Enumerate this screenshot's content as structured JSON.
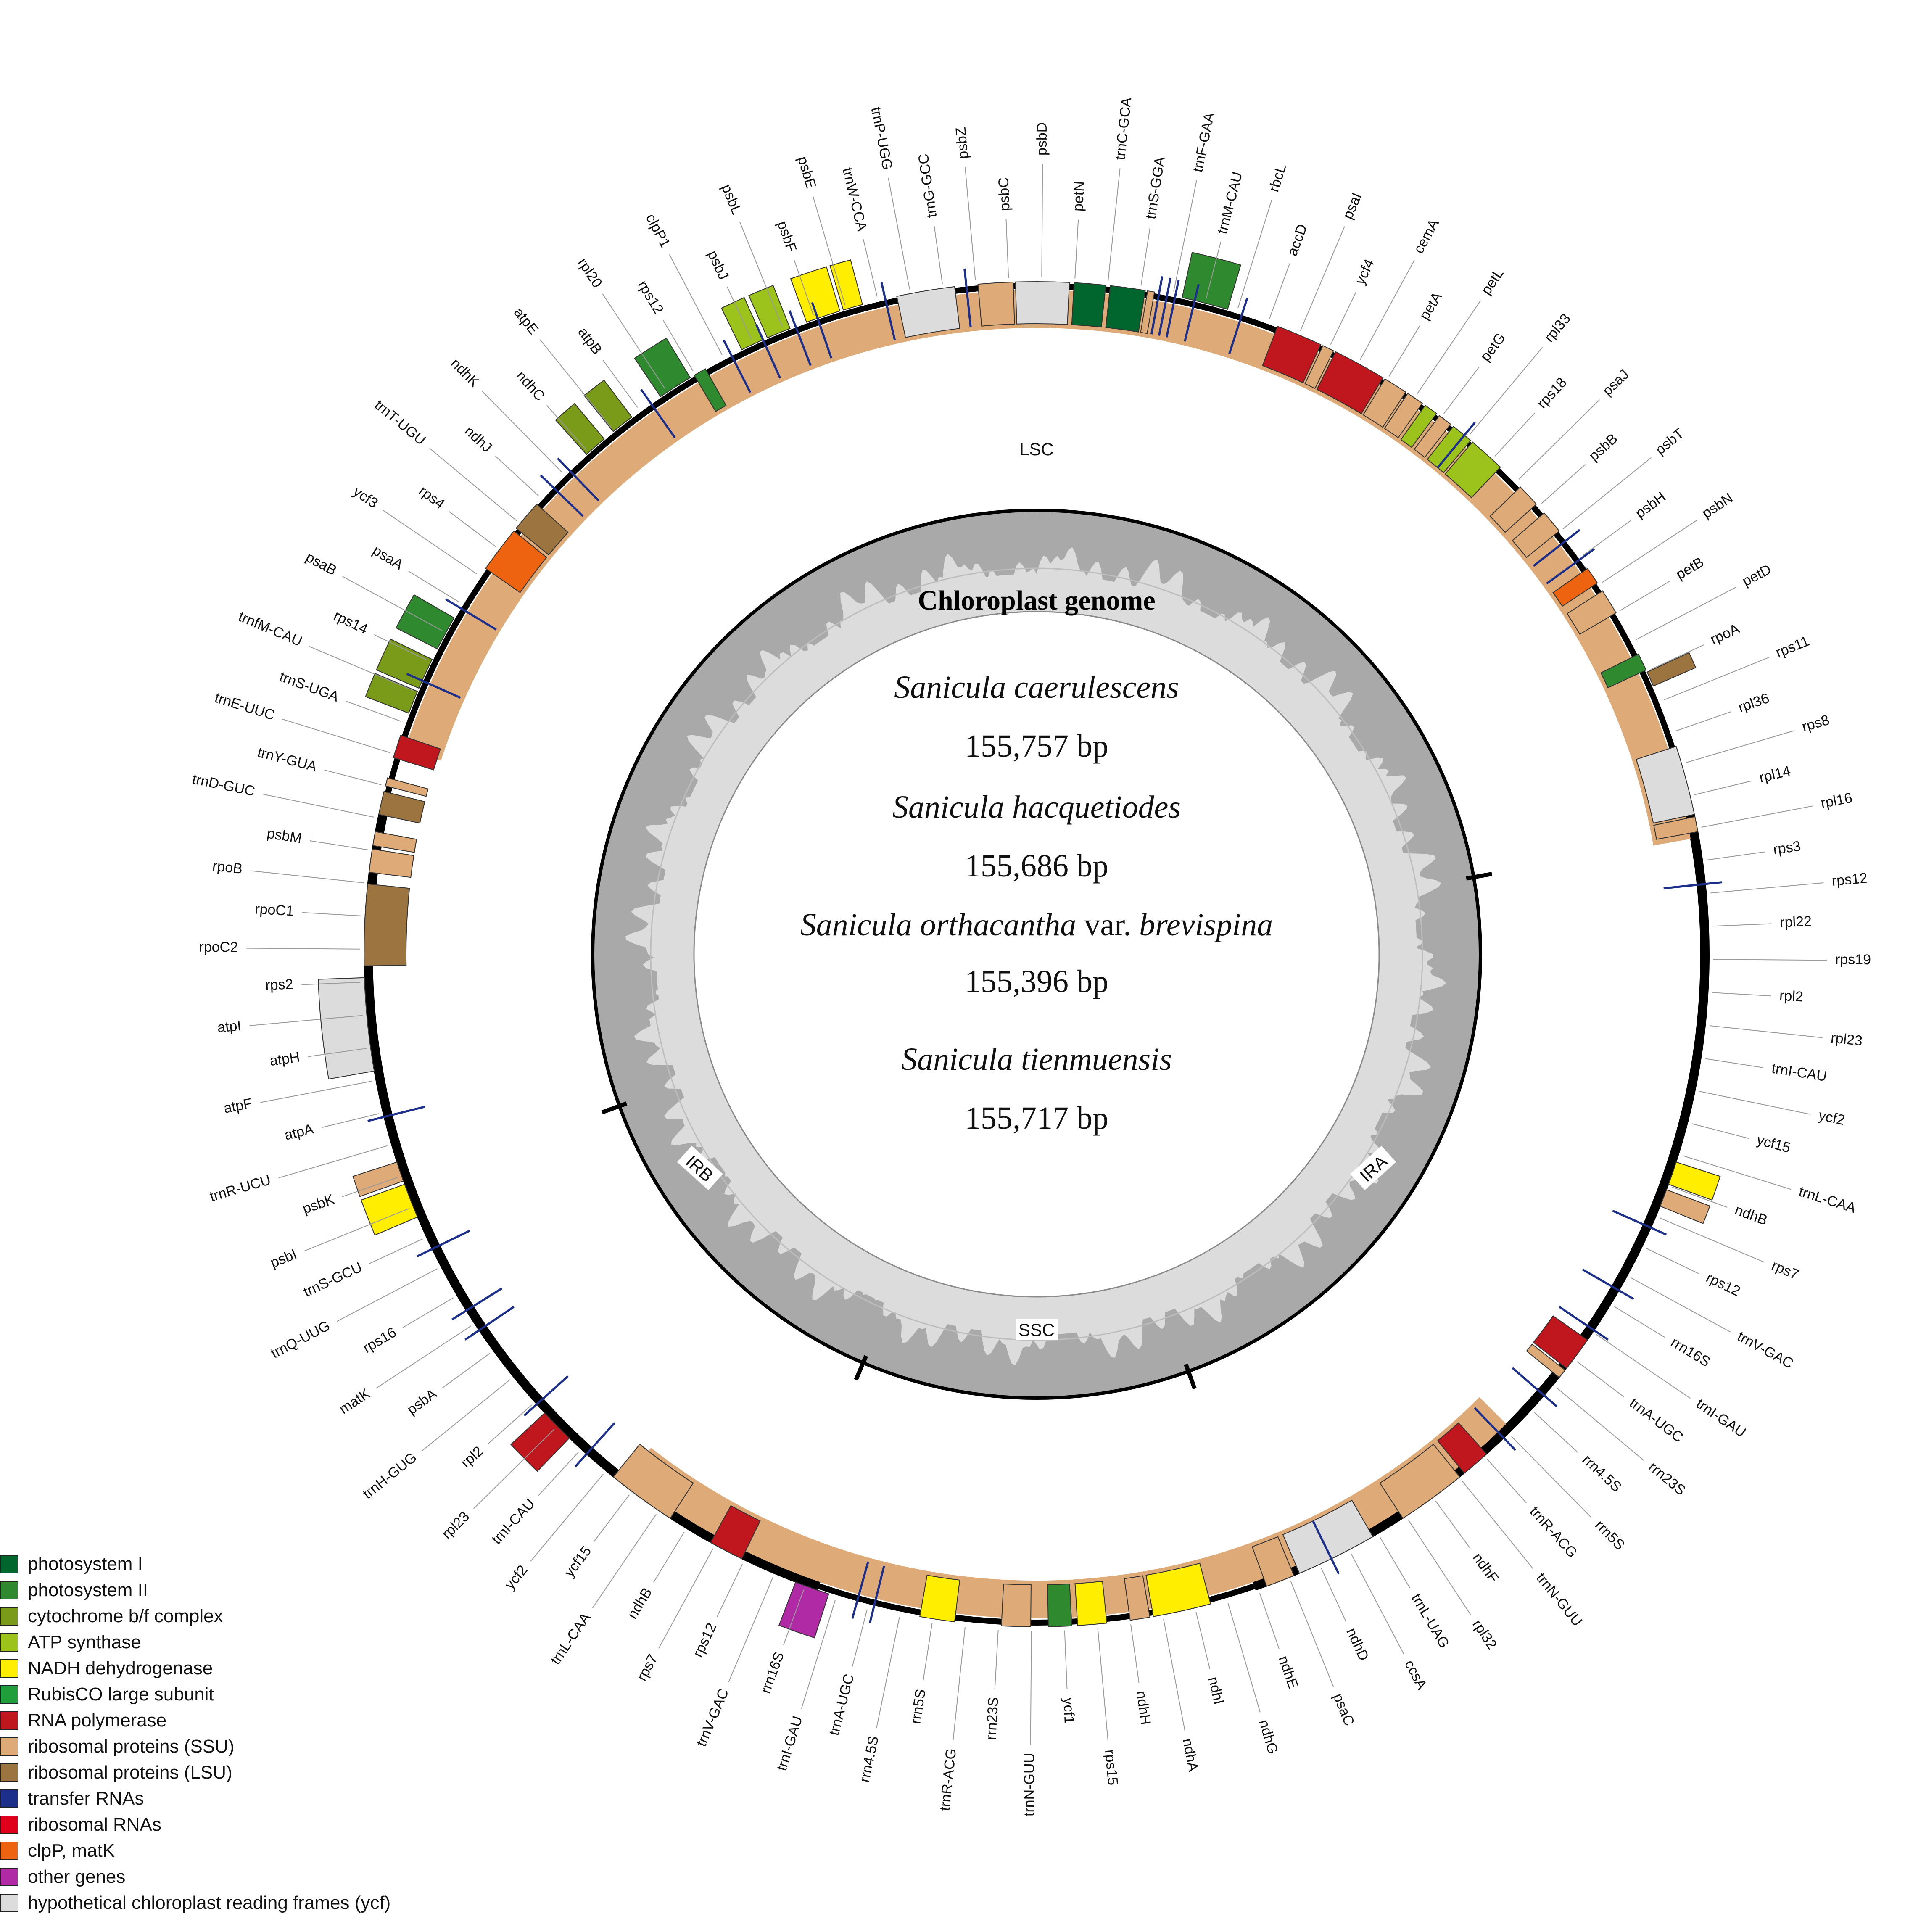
{
  "center": {
    "title": "Chloroplast genome",
    "species": [
      {
        "name": "Sanicula caerulescens",
        "size": "155,757 bp"
      },
      {
        "name": "Sanicula hacquetiodes",
        "size": "155,686 bp"
      },
      {
        "name_a": "Sanicula orthacantha",
        "name_mid": " var. ",
        "name_b": "brevispina",
        "size": "155,396 bp"
      },
      {
        "name": "Sanicula tienmuensis",
        "size": "155,717 bp"
      }
    ]
  },
  "regions": {
    "lsc": "LSC",
    "ssc": "SSC",
    "ira": "IRA",
    "irb": "IRB"
  },
  "legend": [
    {
      "label": "photosystem I",
      "color": "#00662e"
    },
    {
      "label": "photosystem II",
      "color": "#2f8a2f"
    },
    {
      "label": "cytochrome b/f complex",
      "color": "#7a9a1a"
    },
    {
      "label": "ATP synthase",
      "color": "#9bc31b"
    },
    {
      "label": "NADH dehydrogenase",
      "color": "#ffee00"
    },
    {
      "label": "RubisCO large subunit",
      "color": "#1f9e3a"
    },
    {
      "label": "RNA polymerase",
      "color": "#c0161e"
    },
    {
      "label": "ribosomal proteins (SSU)",
      "color": "#deaa78"
    },
    {
      "label": "ribosomal proteins (LSU)",
      "color": "#9b7440"
    },
    {
      "label": "transfer RNAs",
      "color": "#1c2f8a"
    },
    {
      "label": "ribosomal RNAs",
      "color": "#e0001b"
    },
    {
      "label": "clpP, matK",
      "color": "#ee6310"
    },
    {
      "label": "other genes",
      "color": "#b02aa6"
    },
    {
      "label": "hypothetical chloroplast reading frames (ycf)",
      "color": "#dcdcdc"
    }
  ],
  "gene_labels": [
    "trnG-GCC",
    "psbZ",
    "psbC",
    "psbD",
    "petN",
    "trnC-GCA",
    "trnS-GGA",
    "trnF-GAA",
    "trnM-CAU",
    "rbcL",
    "accD",
    "psaI",
    "ycf4",
    "cemA",
    "petA",
    "petL",
    "petG",
    "rpl33",
    "rps18",
    "psaJ",
    "psbB",
    "psbT",
    "psbH",
    "psbN",
    "petB",
    "petD",
    "rpoA",
    "rps11",
    "rpl36",
    "rps8",
    "rpl14",
    "rpl16",
    "rps3",
    "rps12",
    "rpl22",
    "rps19",
    "rpl2",
    "rpl23",
    "trnI-CAU",
    "ycf2",
    "ycf15",
    "trnL-CAA",
    "ndhB",
    "rps7",
    "rps12",
    "trnV-GAC",
    "rrn16S",
    "trnI-GAU",
    "trnA-UGC",
    "rrn23S",
    "rrn4.5S",
    "rrn5S",
    "trnR-ACG",
    "trnN-GUU",
    "ndhF",
    "rpl32",
    "trnL-UAG",
    "ccsA",
    "ndhD",
    "psaC",
    "ndhE",
    "ndhG",
    "ndhI",
    "ndhA",
    "ndhH",
    "rps15",
    "ycf1",
    "trnN-GUU",
    "rrn23S",
    "trnR-ACG",
    "rrn5S",
    "rrn4.5S",
    "trnA-UGC",
    "trnI-GAU",
    "rrn16S",
    "trnV-GAC",
    "rps12",
    "rps7",
    "ndhB",
    "trnL-CAA",
    "ycf15",
    "ycf2",
    "trnI-CAU",
    "rpl23",
    "rpl2",
    "trnH-GUG",
    "psbA",
    "matK",
    "rps16",
    "trnQ-UUG",
    "trnS-GCU",
    "psbI",
    "psbK",
    "trnR-UCU",
    "atpA",
    "atpF",
    "atpH",
    "atpI",
    "rps2",
    "rpoC2",
    "rpoC1",
    "rpoB",
    "psbM",
    "trnD-GUC",
    "trnY-GUA",
    "trnE-UUC",
    "trnS-UGA",
    "trnfM-CAU",
    "rps14",
    "psaB",
    "psaA",
    "ycf3",
    "rps4",
    "trnT-UGU",
    "ndhJ",
    "ndhK",
    "ndhC",
    "atpE",
    "atpB",
    "rpl20",
    "rps12",
    "clpP1",
    "psbJ",
    "psbL",
    "psbF",
    "psbE",
    "trnW-CCA",
    "trnP-UGG"
  ]
}
